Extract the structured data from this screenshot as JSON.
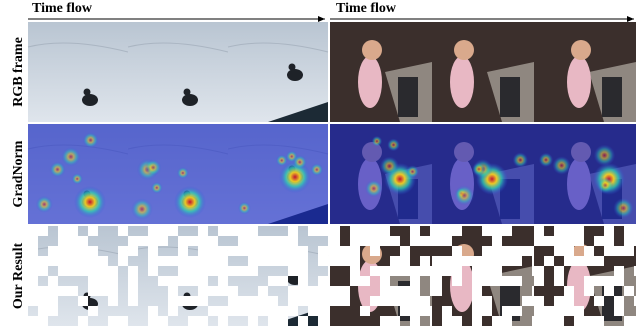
{
  "headers": [
    {
      "label": "Time flow"
    },
    {
      "label": "Time flow"
    }
  ],
  "rows": [
    {
      "label": "RGB frame"
    },
    {
      "label": "GradNorm"
    },
    {
      "label": "Our Result"
    }
  ]
}
